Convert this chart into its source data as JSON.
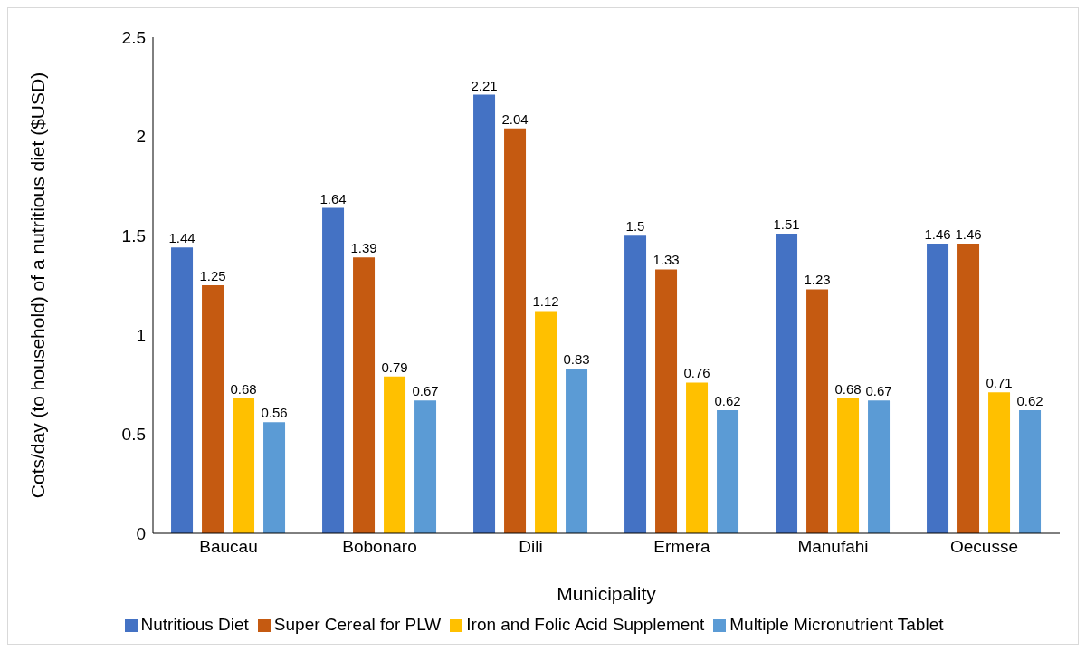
{
  "chart_data": {
    "type": "bar",
    "xlabel": "Municipality",
    "ylabel": "Cots/day (to household) of a nutritious diet ($USD)",
    "categories": [
      "Baucau",
      "Bobonaro",
      "Dili",
      "Ermera",
      "Manufahi",
      "Oecusse"
    ],
    "series": [
      {
        "name": "Nutritious Diet",
        "color": "#4472c4",
        "values": [
          1.44,
          1.64,
          2.21,
          1.5,
          1.51,
          1.46
        ]
      },
      {
        "name": "Super Cereal for PLW",
        "color": "#c55a11",
        "values": [
          1.25,
          1.39,
          2.04,
          1.33,
          1.23,
          1.46
        ]
      },
      {
        "name": "Iron and Folic Acid Supplement",
        "color": "#ffc000",
        "values": [
          0.68,
          0.79,
          1.12,
          0.76,
          0.68,
          0.71
        ]
      },
      {
        "name": "Multiple Micronutrient Tablet",
        "color": "#5b9bd5",
        "values": [
          0.56,
          0.67,
          0.83,
          0.62,
          0.67,
          0.62
        ]
      }
    ],
    "ylim": [
      0,
      2.5
    ],
    "yticks": [
      0,
      0.5,
      1,
      1.5,
      2,
      2.5
    ],
    "grid": false,
    "legend": "bottom",
    "data_labels": true
  }
}
